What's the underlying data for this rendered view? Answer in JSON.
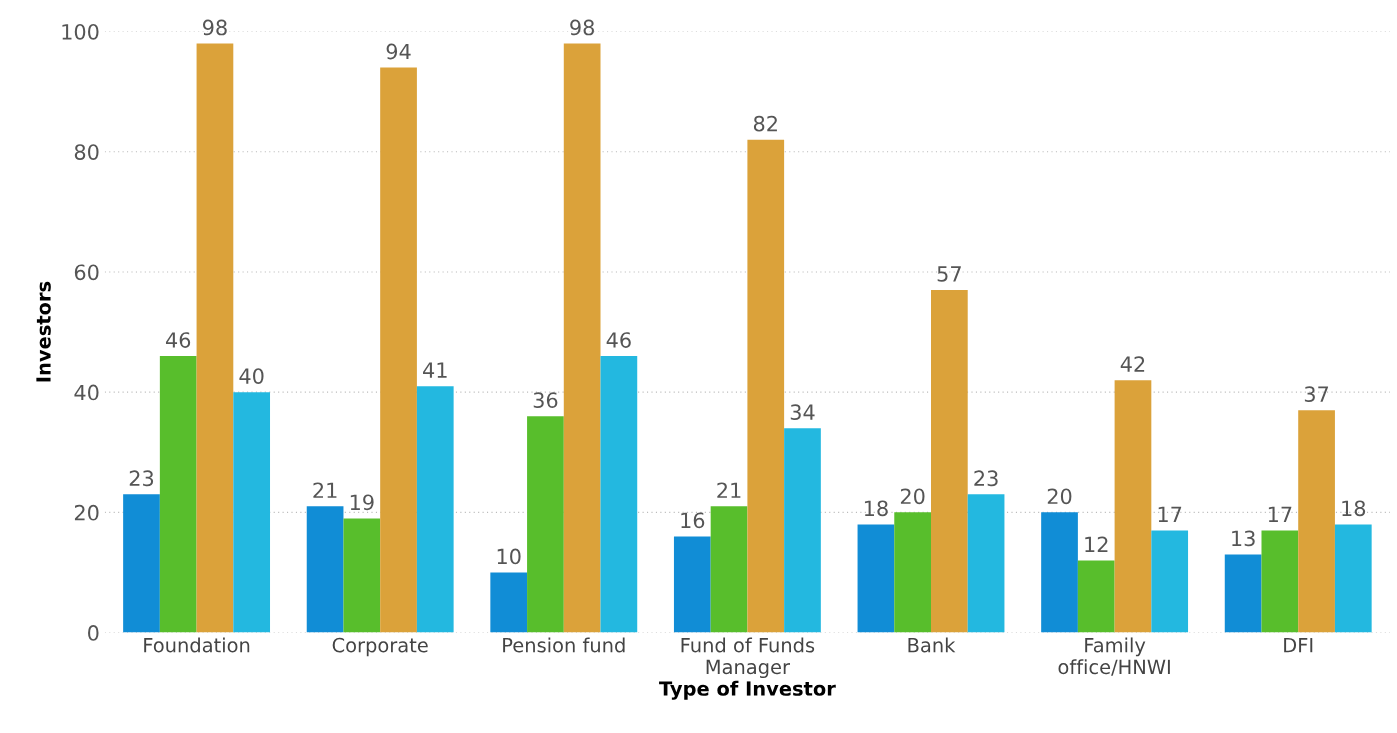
{
  "chart_data": {
    "type": "bar",
    "xlabel": "Type of Investor",
    "ylabel": "Investors",
    "categories": [
      "Foundation",
      "Corporate",
      "Pension fund",
      "Fund of Funds\nManager",
      "Bank",
      "Family\noffice/HNWI",
      "DFI"
    ],
    "series": [
      {
        "color": "#118dd6",
        "values": [
          23,
          21,
          10,
          16,
          18,
          20,
          13
        ]
      },
      {
        "color": "#58be2c",
        "values": [
          46,
          19,
          36,
          21,
          20,
          12,
          17
        ]
      },
      {
        "color": "#dba23a",
        "values": [
          98,
          94,
          98,
          82,
          57,
          42,
          37
        ]
      },
      {
        "color": "#23b8e0",
        "values": [
          40,
          41,
          46,
          34,
          23,
          17,
          18
        ]
      }
    ],
    "ylim": [
      0,
      100
    ],
    "yticks": [
      0,
      20,
      40,
      60,
      80,
      100
    ],
    "grid": "y",
    "data_labels": true
  }
}
